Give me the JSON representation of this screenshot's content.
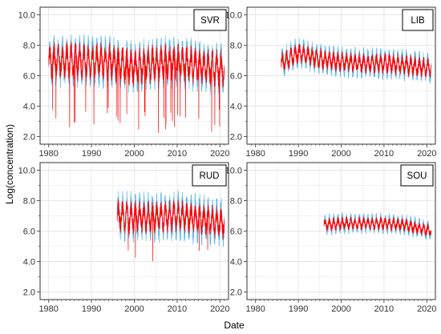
{
  "chart_data": {
    "type": "line",
    "xlabel": "Date",
    "ylabel": "Log(concentration)",
    "xlim": [
      1978,
      2022
    ],
    "ylim": [
      1.5,
      10.5
    ],
    "x_ticks": [
      1980,
      1990,
      2000,
      2010,
      2020
    ],
    "y_ticks": [
      2.0,
      4.0,
      6.0,
      8.0,
      10.0
    ],
    "grid": true,
    "colors": {
      "band": "#5fb8e6",
      "line": "#ff0000",
      "tick": "#555555",
      "grid": "#e6e6e6",
      "frame": "#333333"
    },
    "panels": [
      {
        "title": "SVR",
        "x_range": [
          1980.0,
          2021.0
        ],
        "series": [
          {
            "x": [
              1980,
              1985,
              1990,
              1995,
              2000,
              2005,
              2010,
              2015,
              2021
            ],
            "values": [
              6.9,
              7.0,
              6.9,
              6.9,
              6.5,
              6.8,
              6.9,
              6.6,
              6.4
            ]
          }
        ],
        "band_width": 1.5,
        "line_width": 1.0
      },
      {
        "title": "LIB",
        "x_range": [
          1986.0,
          2021.0
        ],
        "series": [
          {
            "x": [
              1986,
              1990,
              1995,
              2000,
              2005,
              2010,
              2015,
              2021
            ],
            "values": [
              6.8,
              7.5,
              7.1,
              6.9,
              6.8,
              6.8,
              6.7,
              6.5
            ]
          }
        ],
        "band_width": 0.9,
        "line_width": 0.55
      },
      {
        "title": "RUD",
        "x_range": [
          1996.0,
          2021.0
        ],
        "series": [
          {
            "x": [
              1996,
              2000,
              2005,
              2010,
              2015,
              2021
            ],
            "values": [
              7.0,
              6.9,
              6.9,
              7.0,
              6.8,
              6.5
            ]
          }
        ],
        "band_width": 1.45,
        "line_width": 0.85
      },
      {
        "title": "SOU",
        "x_range": [
          1996.0,
          2021.0
        ],
        "series": [
          {
            "x": [
              1996,
              2000,
              2005,
              2010,
              2015,
              2021
            ],
            "values": [
              6.4,
              6.5,
              6.5,
              6.5,
              6.4,
              6.0
            ]
          }
        ],
        "band_width": 0.6,
        "line_width": 0.35
      }
    ]
  }
}
